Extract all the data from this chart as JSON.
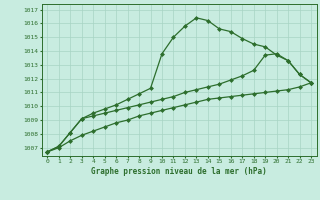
{
  "title": "Graphe pression niveau de la mer (hPa)",
  "bg_color": "#c8ece0",
  "grid_color": "#a8d4c4",
  "line_color": "#2d6e2d",
  "ylim": [
    1006.4,
    1017.4
  ],
  "yticks": [
    1007,
    1008,
    1009,
    1010,
    1011,
    1012,
    1013,
    1014,
    1015,
    1016,
    1017
  ],
  "series1": [
    1006.7,
    1007.1,
    1008.1,
    1009.1,
    1009.5,
    1009.8,
    1010.1,
    1010.5,
    1010.9,
    1011.3,
    1013.8,
    1015.0,
    1015.8,
    1016.4,
    1016.2,
    1015.6,
    1015.4,
    1014.9,
    1014.5,
    1014.3,
    1013.7,
    1013.3,
    1012.3,
    1011.7
  ],
  "series2": [
    1006.7,
    1007.1,
    1008.1,
    1009.1,
    1009.3,
    1009.5,
    1009.7,
    1009.9,
    1010.1,
    1010.3,
    1010.5,
    1010.7,
    1011.0,
    1011.2,
    1011.4,
    1011.6,
    1011.9,
    1012.2,
    1012.6,
    1013.7,
    1013.8,
    1013.3,
    1012.3,
    1011.7
  ],
  "series3": [
    1006.7,
    1007.0,
    1007.5,
    1007.9,
    1008.2,
    1008.5,
    1008.8,
    1009.0,
    1009.3,
    1009.5,
    1009.7,
    1009.9,
    1010.1,
    1010.3,
    1010.5,
    1010.6,
    1010.7,
    1010.8,
    1010.9,
    1011.0,
    1011.1,
    1011.2,
    1011.4,
    1011.7
  ]
}
